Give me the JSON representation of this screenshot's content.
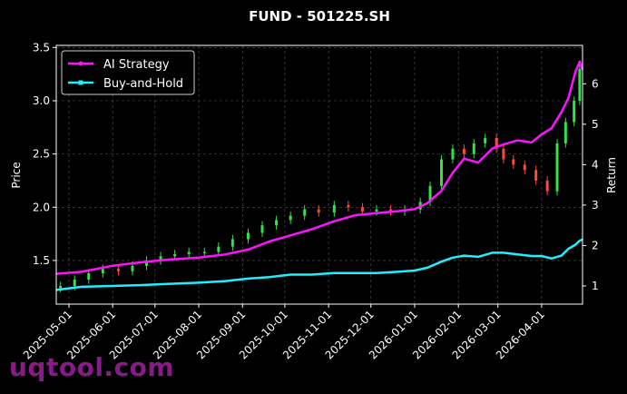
{
  "chart_data": {
    "type": "line",
    "title": "FUND - 501225.SH",
    "ylabel_left": "Price",
    "ylabel_right": "Return",
    "x_range": [
      "2025-04-22",
      "2026-04-30"
    ],
    "y_left_range": [
      1.09,
      3.52
    ],
    "y_right_range": [
      0.55,
      6.95
    ],
    "y_left_ticks": [
      1.5,
      2.0,
      2.5,
      3.0,
      3.5
    ],
    "y_right_ticks": [
      1,
      2,
      3,
      4,
      5,
      6
    ],
    "x_ticks": [
      "2025-05-01",
      "2025-06-01",
      "2025-07-01",
      "2025-08-01",
      "2025-09-01",
      "2025-10-01",
      "2025-11-01",
      "2025-12-01",
      "2026-01-01",
      "2026-02-01",
      "2026-03-01",
      "2026-04-01"
    ],
    "grid": true,
    "legend_position": "top-left",
    "price_candles": {
      "x": [
        "2025-04-25",
        "2025-05-05",
        "2025-05-15",
        "2025-05-25",
        "2025-06-05",
        "2025-06-15",
        "2025-06-25",
        "2025-07-05",
        "2025-07-15",
        "2025-07-25",
        "2025-08-05",
        "2025-08-15",
        "2025-08-25",
        "2025-09-05",
        "2025-09-15",
        "2025-09-25",
        "2025-10-05",
        "2025-10-15",
        "2025-10-25",
        "2025-11-05",
        "2025-11-15",
        "2025-11-25",
        "2025-12-05",
        "2025-12-15",
        "2025-12-25",
        "2026-01-05",
        "2026-01-12",
        "2026-01-20",
        "2026-01-28",
        "2026-02-05",
        "2026-02-12",
        "2026-02-20",
        "2026-02-28",
        "2026-03-05",
        "2026-03-12",
        "2026-03-20",
        "2026-03-28",
        "2026-04-05",
        "2026-04-12",
        "2026-04-18",
        "2026-04-24",
        "2026-04-28"
      ],
      "close": [
        1.26,
        1.32,
        1.38,
        1.42,
        1.4,
        1.45,
        1.5,
        1.54,
        1.56,
        1.58,
        1.58,
        1.63,
        1.7,
        1.76,
        1.83,
        1.88,
        1.92,
        1.98,
        1.95,
        2.02,
        2.0,
        1.96,
        1.98,
        1.96,
        1.98,
        2.05,
        2.2,
        2.45,
        2.55,
        2.5,
        2.6,
        2.65,
        2.55,
        2.45,
        2.4,
        2.35,
        2.25,
        2.15,
        2.6,
        2.8,
        3.0,
        3.3
      ],
      "colors": {
        "up": "#33e14a",
        "down": "#ff4a3a"
      }
    },
    "series": [
      {
        "name": "AI Strategy",
        "color": "#ff10ff",
        "x": [
          "2025-04-22",
          "2025-05-10",
          "2025-06-01",
          "2025-06-20",
          "2025-07-10",
          "2025-08-01",
          "2025-08-20",
          "2025-09-05",
          "2025-09-20",
          "2025-10-05",
          "2025-10-20",
          "2025-11-05",
          "2025-11-20",
          "2025-12-05",
          "2025-12-20",
          "2026-01-01",
          "2026-01-10",
          "2026-01-20",
          "2026-01-28",
          "2026-02-05",
          "2026-02-15",
          "2026-02-25",
          "2026-03-05",
          "2026-03-15",
          "2026-03-25",
          "2026-04-01",
          "2026-04-08",
          "2026-04-15",
          "2026-04-20",
          "2026-04-25",
          "2026-04-28",
          "2026-04-30"
        ],
        "values": [
          1.3,
          1.35,
          1.5,
          1.58,
          1.65,
          1.7,
          1.78,
          1.9,
          2.1,
          2.25,
          2.4,
          2.6,
          2.75,
          2.8,
          2.85,
          2.9,
          3.05,
          3.35,
          3.8,
          4.15,
          4.05,
          4.4,
          4.5,
          4.6,
          4.55,
          4.75,
          4.9,
          5.3,
          5.65,
          6.3,
          6.55,
          6.35
        ]
      },
      {
        "name": "Buy-and-Hold",
        "color": "#1ef0ff",
        "x": [
          "2025-04-22",
          "2025-05-10",
          "2025-06-01",
          "2025-06-20",
          "2025-07-10",
          "2025-08-01",
          "2025-08-20",
          "2025-09-05",
          "2025-09-20",
          "2025-10-05",
          "2025-10-20",
          "2025-11-05",
          "2025-11-20",
          "2025-12-05",
          "2025-12-20",
          "2026-01-01",
          "2026-01-10",
          "2026-01-20",
          "2026-01-28",
          "2026-02-05",
          "2026-02-15",
          "2026-02-25",
          "2026-03-05",
          "2026-03-15",
          "2026-03-25",
          "2026-04-01",
          "2026-04-08",
          "2026-04-15",
          "2026-04-20",
          "2026-04-25",
          "2026-04-28",
          "2026-04-30"
        ],
        "values": [
          0.9,
          0.98,
          1.0,
          1.02,
          1.05,
          1.08,
          1.12,
          1.18,
          1.22,
          1.28,
          1.28,
          1.32,
          1.32,
          1.32,
          1.35,
          1.38,
          1.45,
          1.6,
          1.7,
          1.75,
          1.72,
          1.82,
          1.82,
          1.78,
          1.74,
          1.74,
          1.68,
          1.75,
          1.92,
          2.02,
          2.12,
          2.15
        ]
      }
    ]
  },
  "watermark": "uqtool.com"
}
